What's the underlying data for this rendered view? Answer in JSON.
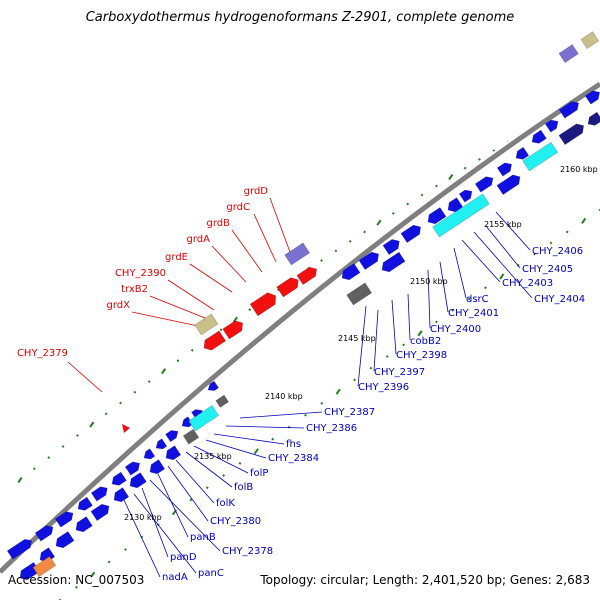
{
  "title": "Carboxydothermus hydrogenoformans Z-2901, complete genome",
  "footer": {
    "accession": "Accession: NC_007503",
    "summary": "Topology: circular; Length: 2,401,520 bp; Genes: 2,683"
  },
  "kbp_ticks": [
    "2130 kbp",
    "2135 kbp",
    "2140 kbp",
    "2145 kbp",
    "2150 kbp",
    "2155 kbp",
    "2160 kbp"
  ],
  "red_labels": [
    "grdD",
    "grdC",
    "grdB",
    "grdA",
    "grdE",
    "CHY_2390",
    "trxB2",
    "grdX",
    "CHY_2379"
  ],
  "blue_labels": [
    "CHY_2387",
    "CHY_2386",
    "fhs",
    "CHY_2384",
    "folP",
    "folB",
    "folK",
    "CHY_2380",
    "panB",
    "CHY_2378",
    "panD",
    "panC",
    "nadA",
    "CHY_2396",
    "CHY_2397",
    "CHY_2398",
    "cobB2",
    "CHY_2400",
    "CHY_2401",
    "dsrC",
    "CHY_2403",
    "CHY_2404",
    "CHY_2405",
    "CHY_2406"
  ],
  "colors": {
    "backbone": "#7f7f7f",
    "gene_blue": "#1010e0",
    "gene_red": "#f01010",
    "gene_cyan": "#20f0f0",
    "gene_gray": "#606060",
    "gene_khaki": "#c8c08a",
    "gene_violet": "#7a70d0",
    "gene_navy": "#1a1a80",
    "label_red": "#e00000",
    "label_blue": "#0000c0",
    "tick_green": "#208020"
  }
}
